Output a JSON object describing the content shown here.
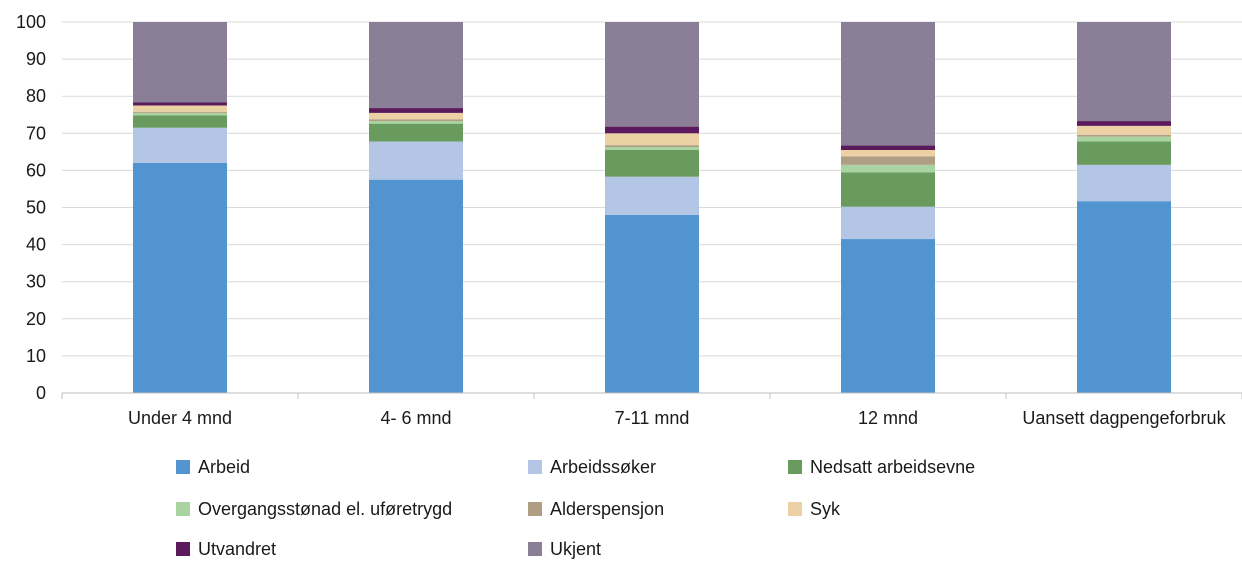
{
  "chart_data": {
    "type": "bar",
    "stacked": true,
    "title": "",
    "xlabel": "",
    "ylabel": "",
    "ylim": [
      0,
      100
    ],
    "yticks": [
      0,
      10,
      20,
      30,
      40,
      50,
      60,
      70,
      80,
      90,
      100
    ],
    "grid": true,
    "legend_position": "bottom",
    "categories": [
      "Under 4 mnd",
      "4- 6 mnd",
      "7-11 mnd",
      "12 mnd",
      "Uansett dagpengeforbruk"
    ],
    "series": [
      {
        "name": "Arbeid",
        "color": "#5294cf",
        "values": [
          62,
          57.5,
          48,
          41.5,
          51.7
        ]
      },
      {
        "name": "Arbeidssøker",
        "color": "#b3c6e6",
        "values": [
          9.5,
          10.3,
          10.3,
          8.7,
          9.8
        ]
      },
      {
        "name": "Nedsatt arbeidsevne",
        "color": "#6a9b5e",
        "values": [
          3.3,
          4.8,
          7.2,
          9.3,
          6.3
        ]
      },
      {
        "name": "Overgangsstønad el. uføretrygd",
        "color": "#a9d3a0",
        "values": [
          0.7,
          0.7,
          0.8,
          2.0,
          1.3
        ]
      },
      {
        "name": "Alderspensjon",
        "color": "#b09e84",
        "values": [
          0.3,
          0.5,
          0.5,
          2.3,
          0.5
        ]
      },
      {
        "name": "Syk",
        "color": "#ebd1a3",
        "values": [
          1.7,
          1.7,
          3.2,
          1.7,
          2.4
        ]
      },
      {
        "name": "Utvandret",
        "color": "#5a1a5c",
        "values": [
          0.8,
          1.3,
          1.8,
          1.2,
          1.3
        ]
      },
      {
        "name": "Ukjent",
        "color": "#8a7f96",
        "values": [
          21.7,
          23.2,
          28.2,
          33.3,
          26.7
        ]
      }
    ]
  }
}
